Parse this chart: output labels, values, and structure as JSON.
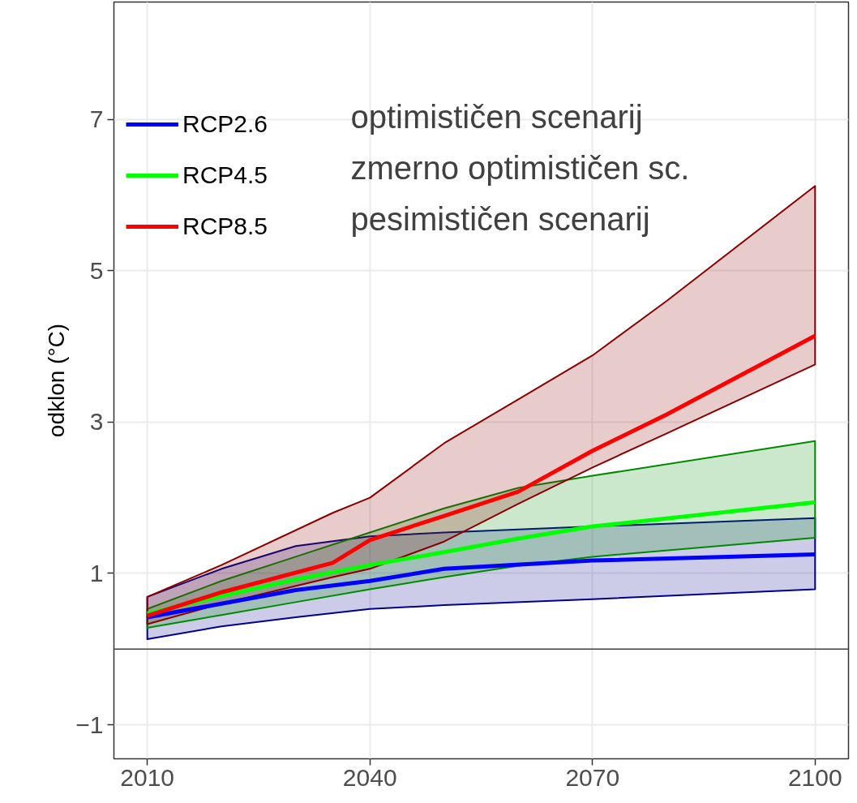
{
  "chart_data": {
    "type": "line",
    "ylabel": "odklon (°C)",
    "xlim": [
      2005.5,
      2104.5
    ],
    "xticks": [
      2010,
      2040,
      2070,
      2100
    ],
    "ylim": [
      -1.45,
      8.55
    ],
    "yticks": [
      -1,
      1,
      3,
      5,
      7
    ],
    "grid": true,
    "legend": "top left",
    "annotations": [
      "optimističen scenarij",
      "zmerno optimističen sc.",
      "pesimističen scenarij"
    ],
    "ref_lines": [
      {
        "axis": "y",
        "value": 0,
        "color": "#404040"
      }
    ],
    "series": [
      {
        "name": "RCP2.6",
        "color": "#0000ff",
        "x": [
          2010,
          2020,
          2030,
          2040,
          2050,
          2070,
          2100
        ],
        "values": [
          0.42,
          0.6,
          0.78,
          0.9,
          1.06,
          1.17,
          1.25
        ],
        "lower": [
          0.13,
          0.3,
          0.42,
          0.53,
          0.58,
          0.66,
          0.79
        ],
        "upper": [
          0.69,
          1.06,
          1.36,
          1.49,
          1.54,
          1.62,
          1.73
        ]
      },
      {
        "name": "RCP4.5",
        "color": "#00ff00",
        "x": [
          2010,
          2020,
          2030,
          2040,
          2050,
          2060,
          2070,
          2100
        ],
        "values": [
          0.47,
          0.7,
          0.92,
          1.11,
          1.28,
          1.46,
          1.62,
          1.94
        ],
        "lower": [
          0.28,
          0.45,
          0.62,
          0.79,
          0.95,
          1.1,
          1.22,
          1.47
        ],
        "upper": [
          0.53,
          0.9,
          1.22,
          1.54,
          1.86,
          2.13,
          2.29,
          2.75
        ]
      },
      {
        "name": "RCP8.5",
        "color": "#ff0000",
        "x": [
          2010,
          2020,
          2035,
          2040,
          2050,
          2060,
          2070,
          2080,
          2100
        ],
        "values": [
          0.44,
          0.75,
          1.14,
          1.44,
          1.76,
          2.08,
          2.62,
          3.1,
          4.14
        ],
        "lower": [
          0.33,
          0.6,
          0.95,
          1.06,
          1.42,
          1.92,
          2.4,
          2.85,
          3.76
        ],
        "upper": [
          0.69,
          1.11,
          1.8,
          2.0,
          2.72,
          3.3,
          3.88,
          4.6,
          6.12
        ]
      }
    ]
  }
}
